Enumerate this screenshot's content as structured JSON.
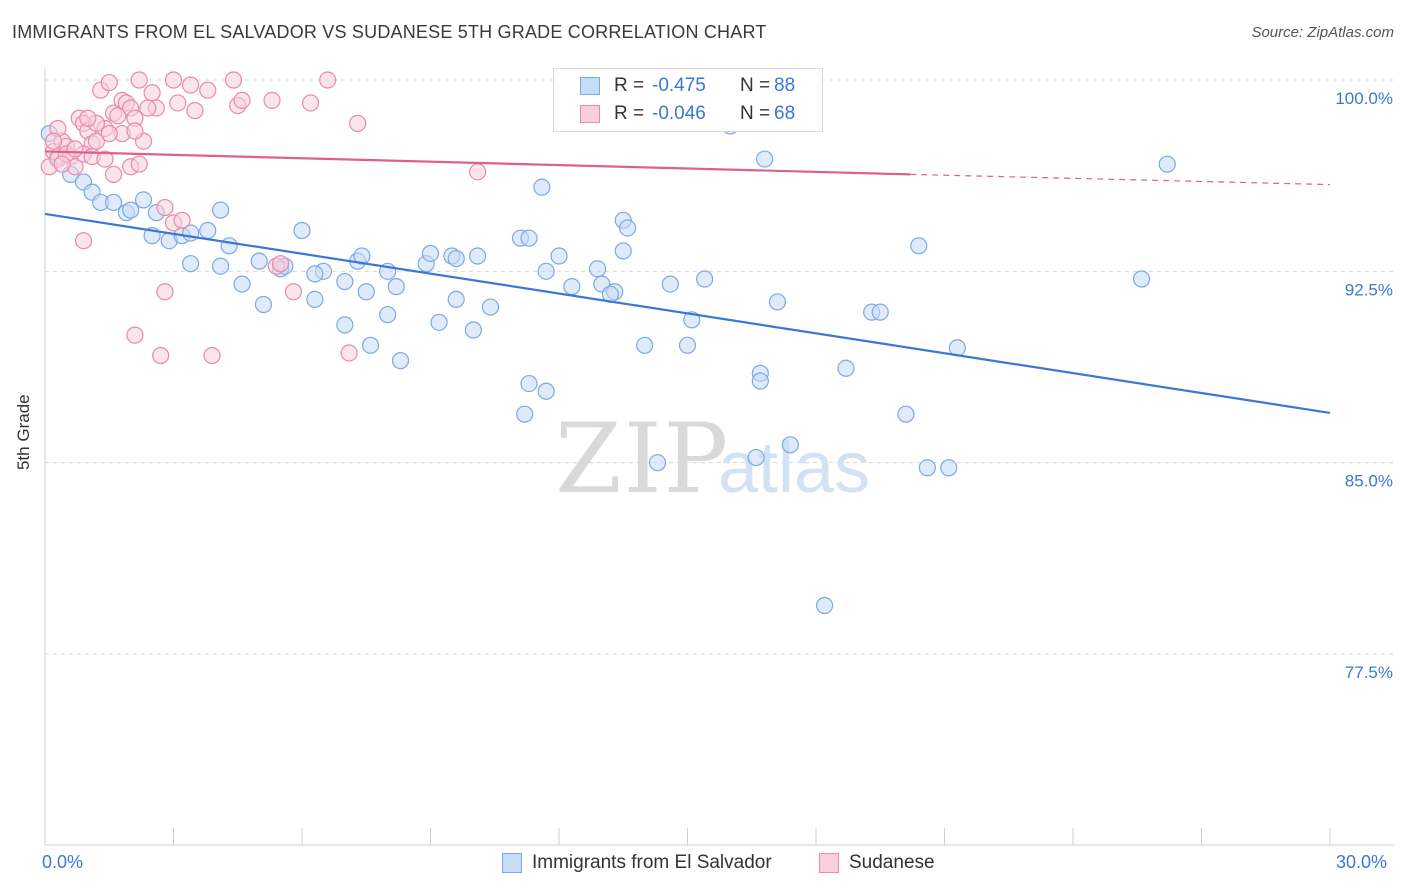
{
  "header": {
    "title": "IMMIGRANTS FROM EL SALVADOR VS SUDANESE 5TH GRADE CORRELATION CHART",
    "source": "Source: ZipAtlas.com"
  },
  "watermark": {
    "zip": "ZIP",
    "atlas": "atlas"
  },
  "legend": {
    "rows": [
      {
        "r_label": "R =",
        "r_value": "-0.475",
        "n_label": "N =",
        "n_value": "88",
        "color": "#7aa9e6",
        "fill": "#c6dbf5"
      },
      {
        "r_label": "R =",
        "r_value": "-0.046",
        "n_label": "N =",
        "n_value": "68",
        "color": "#e88aa8",
        "fill": "#f8cfdc"
      }
    ]
  },
  "bottom_legend": {
    "items": [
      {
        "label": "Immigrants from El Salvador",
        "color": "#7aa9e6",
        "fill": "#c6dbf5"
      },
      {
        "label": "Sudanese",
        "color": "#e88aa8",
        "fill": "#f8cfdc"
      }
    ]
  },
  "chart_data": {
    "type": "scatter",
    "title": "IMMIGRANTS FROM EL SALVADOR VS SUDANESE 5TH GRADE CORRELATION CHART",
    "xlabel": "",
    "ylabel": "5th Grade",
    "xlim": [
      0,
      30
    ],
    "ylim": [
      70.0,
      101.0
    ],
    "x_tick_labels": [
      "0.0%",
      "30.0%"
    ],
    "y_ticks": [
      100.0,
      92.5,
      85.0,
      77.5
    ],
    "y_tick_labels": [
      "100.0%",
      "92.5%",
      "85.0%",
      "77.5%"
    ],
    "grid": "horizontal dashed",
    "legend_position": "top-center",
    "series": [
      {
        "name": "Immigrants from El Salvador",
        "color": "#3b78d4",
        "fill": "#c6dbf5",
        "stroke": "#7aa9e6",
        "trend": {
          "x": [
            0,
            30
          ],
          "y": [
            94.75,
            86.95
          ],
          "dashed_from": null
        },
        "points": [
          [
            0.1,
            97.9
          ],
          [
            0.3,
            97.0
          ],
          [
            0.6,
            96.3
          ],
          [
            0.9,
            96.0
          ],
          [
            1.1,
            95.6
          ],
          [
            1.3,
            95.2
          ],
          [
            1.6,
            95.2
          ],
          [
            1.9,
            94.8
          ],
          [
            2.0,
            94.9
          ],
          [
            2.3,
            95.3
          ],
          [
            2.6,
            94.8
          ],
          [
            2.5,
            93.9
          ],
          [
            2.9,
            93.7
          ],
          [
            3.2,
            93.9
          ],
          [
            3.4,
            94.0
          ],
          [
            3.8,
            94.1
          ],
          [
            4.1,
            94.9
          ],
          [
            4.3,
            93.5
          ],
          [
            3.4,
            92.8
          ],
          [
            4.1,
            92.7
          ],
          [
            4.6,
            92.0
          ],
          [
            5.0,
            92.9
          ],
          [
            5.5,
            92.6
          ],
          [
            5.6,
            92.7
          ],
          [
            6.0,
            94.1
          ],
          [
            6.3,
            91.4
          ],
          [
            6.5,
            92.5
          ],
          [
            6.3,
            92.4
          ],
          [
            5.1,
            91.2
          ],
          [
            7.0,
            92.1
          ],
          [
            7.3,
            92.9
          ],
          [
            7.4,
            93.1
          ],
          [
            7.5,
            91.7
          ],
          [
            8.0,
            92.5
          ],
          [
            8.2,
            91.9
          ],
          [
            8.9,
            92.8
          ],
          [
            9.0,
            93.2
          ],
          [
            9.5,
            93.1
          ],
          [
            9.6,
            93.0
          ],
          [
            10.1,
            93.1
          ],
          [
            10.4,
            91.1
          ],
          [
            11.1,
            93.8
          ],
          [
            11.3,
            93.8
          ],
          [
            11.6,
            95.8
          ],
          [
            11.7,
            92.5
          ],
          [
            12.0,
            93.1
          ],
          [
            12.3,
            91.9
          ],
          [
            12.9,
            92.6
          ],
          [
            13.0,
            92.0
          ],
          [
            13.5,
            94.5
          ],
          [
            13.6,
            94.2
          ],
          [
            13.5,
            93.3
          ],
          [
            13.3,
            91.7
          ],
          [
            13.2,
            91.6
          ],
          [
            14.6,
            92.0
          ],
          [
            15.1,
            90.6
          ],
          [
            15.0,
            89.6
          ],
          [
            15.4,
            92.2
          ],
          [
            16.0,
            98.2
          ],
          [
            16.8,
            96.9
          ],
          [
            16.7,
            88.5
          ],
          [
            16.7,
            88.2
          ],
          [
            17.1,
            91.3
          ],
          [
            17.4,
            85.7
          ],
          [
            18.2,
            79.4
          ],
          [
            18.7,
            88.7
          ],
          [
            19.3,
            90.9
          ],
          [
            19.5,
            90.9
          ],
          [
            20.1,
            86.9
          ],
          [
            20.4,
            93.5
          ],
          [
            20.6,
            84.8
          ],
          [
            21.1,
            84.8
          ],
          [
            21.3,
            89.5
          ],
          [
            25.6,
            92.2
          ],
          [
            26.2,
            96.7
          ],
          [
            14.3,
            85.0
          ],
          [
            16.6,
            85.2
          ],
          [
            14.0,
            89.6
          ],
          [
            11.7,
            87.8
          ],
          [
            11.2,
            86.9
          ],
          [
            11.3,
            88.1
          ],
          [
            9.2,
            90.5
          ],
          [
            9.6,
            91.4
          ],
          [
            8.0,
            90.8
          ],
          [
            7.0,
            90.4
          ],
          [
            7.6,
            89.6
          ],
          [
            8.3,
            89.0
          ],
          [
            10.0,
            90.2
          ]
        ]
      },
      {
        "name": "Sudanese",
        "color": "#e0608a",
        "fill": "#f8cfdc",
        "stroke": "#e88aa8",
        "trend": {
          "x": [
            0,
            20.2
          ],
          "y": [
            97.2,
            96.3
          ],
          "dashed_to": [
            30,
            95.9
          ]
        },
        "points": [
          [
            0.1,
            96.6
          ],
          [
            0.2,
            97.2
          ],
          [
            0.3,
            96.9
          ],
          [
            0.4,
            97.6
          ],
          [
            0.5,
            97.4
          ],
          [
            0.6,
            97.0
          ],
          [
            0.7,
            96.6
          ],
          [
            0.8,
            98.5
          ],
          [
            0.9,
            98.3
          ],
          [
            1.0,
            98.0
          ],
          [
            1.1,
            97.5
          ],
          [
            1.2,
            97.6
          ],
          [
            1.3,
            99.6
          ],
          [
            1.4,
            98.1
          ],
          [
            1.5,
            99.9
          ],
          [
            1.6,
            98.7
          ],
          [
            1.7,
            98.6
          ],
          [
            1.8,
            99.2
          ],
          [
            1.9,
            99.1
          ],
          [
            2.0,
            98.9
          ],
          [
            2.1,
            98.5
          ],
          [
            2.2,
            100.0
          ],
          [
            2.3,
            97.6
          ],
          [
            2.5,
            99.5
          ],
          [
            2.6,
            98.9
          ],
          [
            3.0,
            100.0
          ],
          [
            3.1,
            99.1
          ],
          [
            3.4,
            99.8
          ],
          [
            3.5,
            98.8
          ],
          [
            4.4,
            100.0
          ],
          [
            4.5,
            99.0
          ],
          [
            4.6,
            99.2
          ],
          [
            5.3,
            99.2
          ],
          [
            6.2,
            99.1
          ],
          [
            6.6,
            100.0
          ],
          [
            7.3,
            98.3
          ],
          [
            0.3,
            98.1
          ],
          [
            0.5,
            97.1
          ],
          [
            0.9,
            97.1
          ],
          [
            1.1,
            97.0
          ],
          [
            1.4,
            96.9
          ],
          [
            1.6,
            96.3
          ],
          [
            2.0,
            96.6
          ],
          [
            2.2,
            96.7
          ],
          [
            2.8,
            95.0
          ],
          [
            3.0,
            94.4
          ],
          [
            3.2,
            94.5
          ],
          [
            0.9,
            93.7
          ],
          [
            2.8,
            91.7
          ],
          [
            5.4,
            92.7
          ],
          [
            5.5,
            92.8
          ],
          [
            5.8,
            91.7
          ],
          [
            2.1,
            90.0
          ],
          [
            2.7,
            89.2
          ],
          [
            3.9,
            89.2
          ],
          [
            7.1,
            89.3
          ],
          [
            10.1,
            96.4
          ],
          [
            16.9,
            99.1
          ],
          [
            0.7,
            97.3
          ],
          [
            1.2,
            98.3
          ],
          [
            1.8,
            97.9
          ],
          [
            0.4,
            96.7
          ],
          [
            1.5,
            97.9
          ],
          [
            2.4,
            98.9
          ],
          [
            2.1,
            98.0
          ],
          [
            0.2,
            97.6
          ],
          [
            3.8,
            99.6
          ],
          [
            1.0,
            98.5
          ]
        ]
      }
    ]
  }
}
